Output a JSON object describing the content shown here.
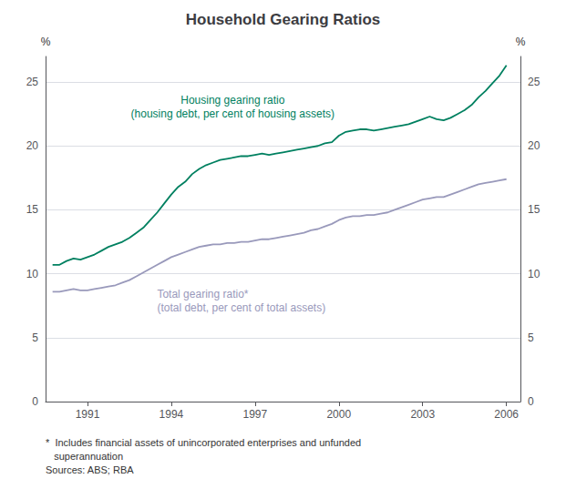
{
  "chart_data": {
    "type": "line",
    "title": "Household Gearing Ratios",
    "ylabel": "%",
    "y2label": "%",
    "x": [
      1989.75,
      1990.0,
      1990.25,
      1990.5,
      1990.75,
      1991.0,
      1991.25,
      1991.5,
      1991.75,
      1992.0,
      1992.25,
      1992.5,
      1992.75,
      1993.0,
      1993.25,
      1993.5,
      1993.75,
      1994.0,
      1994.25,
      1994.5,
      1994.75,
      1995.0,
      1995.25,
      1995.5,
      1995.75,
      1996.0,
      1996.25,
      1996.5,
      1996.75,
      1997.0,
      1997.25,
      1997.5,
      1997.75,
      1998.0,
      1998.25,
      1998.5,
      1998.75,
      1999.0,
      1999.25,
      1999.5,
      1999.75,
      2000.0,
      2000.25,
      2000.5,
      2000.75,
      2001.0,
      2001.25,
      2001.5,
      2001.75,
      2002.0,
      2002.25,
      2002.5,
      2002.75,
      2003.0,
      2003.25,
      2003.5,
      2003.75,
      2004.0,
      2004.25,
      2004.5,
      2004.75,
      2005.0,
      2005.25,
      2005.5,
      2005.75,
      2006.0
    ],
    "series": [
      {
        "color": "#008060",
        "annotation": [
          "Housing gearing ratio",
          "(housing debt, per cent of housing assets)"
        ],
        "values": [
          10.7,
          10.7,
          11.0,
          11.2,
          11.1,
          11.3,
          11.5,
          11.8,
          12.1,
          12.3,
          12.5,
          12.8,
          13.2,
          13.6,
          14.2,
          14.8,
          15.5,
          16.2,
          16.8,
          17.2,
          17.8,
          18.2,
          18.5,
          18.7,
          18.9,
          19.0,
          19.1,
          19.2,
          19.2,
          19.3,
          19.4,
          19.3,
          19.4,
          19.5,
          19.6,
          19.7,
          19.8,
          19.9,
          20.0,
          20.2,
          20.3,
          20.8,
          21.1,
          21.2,
          21.3,
          21.3,
          21.2,
          21.3,
          21.4,
          21.5,
          21.6,
          21.7,
          21.9,
          22.1,
          22.3,
          22.1,
          22.0,
          22.2,
          22.5,
          22.8,
          23.2,
          23.8,
          24.3,
          24.9,
          25.5,
          26.3
        ]
      },
      {
        "color": "#9999BB",
        "annotation": [
          "Total gearing ratio*",
          "(total debt, per cent of total assets)"
        ],
        "values": [
          8.6,
          8.6,
          8.7,
          8.8,
          8.7,
          8.7,
          8.8,
          8.9,
          9.0,
          9.1,
          9.3,
          9.5,
          9.8,
          10.1,
          10.4,
          10.7,
          11.0,
          11.3,
          11.5,
          11.7,
          11.9,
          12.1,
          12.2,
          12.3,
          12.3,
          12.4,
          12.4,
          12.5,
          12.5,
          12.6,
          12.7,
          12.7,
          12.8,
          12.9,
          13.0,
          13.1,
          13.2,
          13.4,
          13.5,
          13.7,
          13.9,
          14.2,
          14.4,
          14.5,
          14.5,
          14.6,
          14.6,
          14.7,
          14.8,
          15.0,
          15.2,
          15.4,
          15.6,
          15.8,
          15.9,
          16.0,
          16.0,
          16.2,
          16.4,
          16.6,
          16.8,
          17.0,
          17.1,
          17.2,
          17.3,
          17.4
        ]
      }
    ],
    "xlim": [
      1989.5,
      2006.5
    ],
    "xticks": [
      1991,
      1994,
      1997,
      2000,
      2003,
      2006
    ],
    "ylim": [
      0,
      27
    ],
    "yticks": [
      0,
      5,
      10,
      15,
      20,
      25
    ],
    "grid": true,
    "notes": [
      "*  Includes financial assets of unincorporated enterprises and unfunded",
      "   superannuation",
      "Sources: ABS; RBA"
    ]
  }
}
